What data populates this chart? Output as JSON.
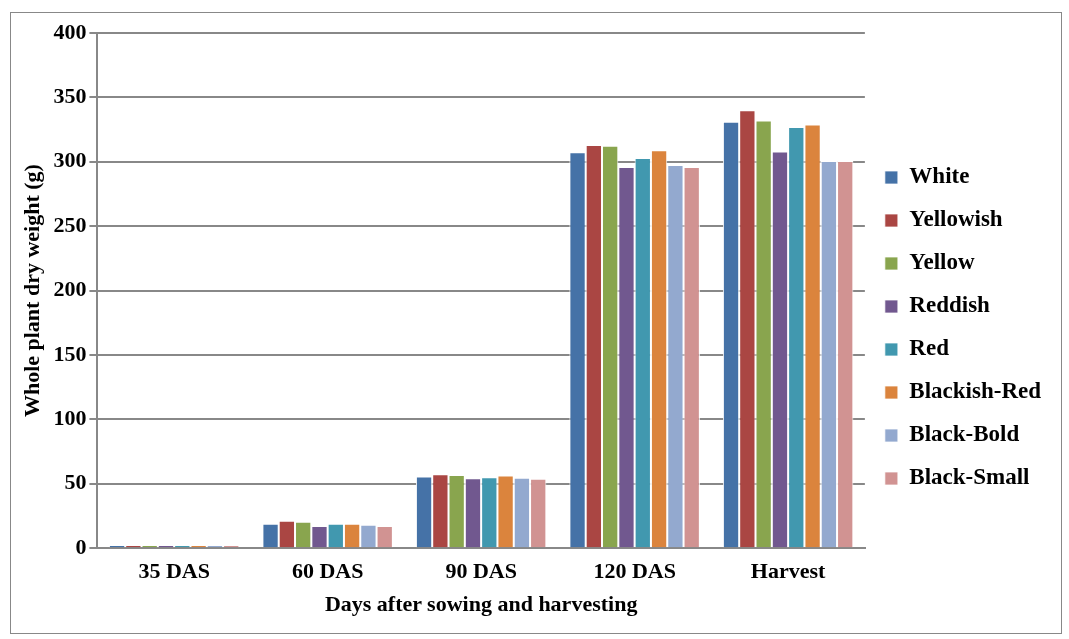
{
  "chart_data": {
    "type": "bar",
    "xlabel": "Days after sowing and harvesting",
    "ylabel": "Whole plant dry weight (g)",
    "categories": [
      "35 DAS",
      "60 DAS",
      "90 DAS",
      "120 DAS",
      "Harvest"
    ],
    "series": [
      {
        "name": "White",
        "color": "#4572a7",
        "values": [
          2.5,
          19,
          55.6,
          307.5,
          331
        ]
      },
      {
        "name": "Yellowish",
        "color": "#aa4643",
        "values": [
          2.5,
          21.4,
          57.5,
          313,
          340
        ]
      },
      {
        "name": "Yellow",
        "color": "#89a54e",
        "values": [
          2.5,
          20.6,
          56.9,
          312.5,
          332
        ]
      },
      {
        "name": "Reddish",
        "color": "#71588f",
        "values": [
          2.5,
          17.2,
          54.4,
          296,
          308
        ]
      },
      {
        "name": "Red",
        "color": "#4198af",
        "values": [
          2.5,
          19,
          55,
          303,
          327
        ]
      },
      {
        "name": "Blackish-Red",
        "color": "#db843d",
        "values": [
          2.5,
          19,
          56.4,
          309,
          329
        ]
      },
      {
        "name": "Black-Bold",
        "color": "#93a9cf",
        "values": [
          2.5,
          18.3,
          54.7,
          297.5,
          300.6
        ]
      },
      {
        "name": "Black-Small",
        "color": "#d19392",
        "values": [
          2.5,
          17.2,
          53.9,
          296,
          300.6
        ]
      }
    ],
    "ylim": [
      0,
      400
    ],
    "yticks": [
      0,
      50,
      100,
      150,
      200,
      250,
      300,
      350,
      400
    ],
    "grid": "y",
    "legend": "right"
  }
}
